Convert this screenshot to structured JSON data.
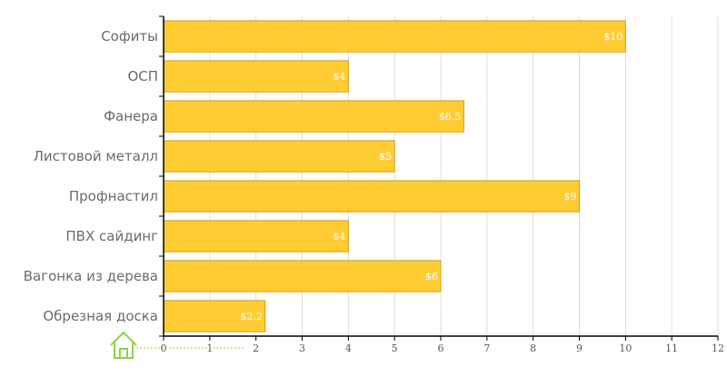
{
  "chart_data": {
    "type": "bar",
    "orientation": "horizontal",
    "categories": [
      "Софиты",
      "ОСП",
      "Фанера",
      "Листовой металл",
      "Профнастил",
      "ПВХ сайдинг",
      "Вагонка из дерева",
      "Обрезная доска"
    ],
    "values": [
      10,
      4,
      6.5,
      5,
      9,
      4,
      6,
      2.2
    ],
    "data_labels": [
      "$10",
      "$4",
      "$6.5",
      "$5",
      "$9",
      "$4",
      "$6",
      "$2.2"
    ],
    "x_ticks": [
      "0",
      "1",
      "2",
      "3",
      "4",
      "5",
      "6",
      "7",
      "8",
      "9",
      "10",
      "11",
      "12"
    ],
    "xlim": [
      0,
      12
    ],
    "grid": true,
    "bar_color": "#ffcc33",
    "title": "",
    "xlabel": "",
    "ylabel": ""
  },
  "watermark": {
    "icon": "house-icon",
    "color": "#8fd14f"
  }
}
